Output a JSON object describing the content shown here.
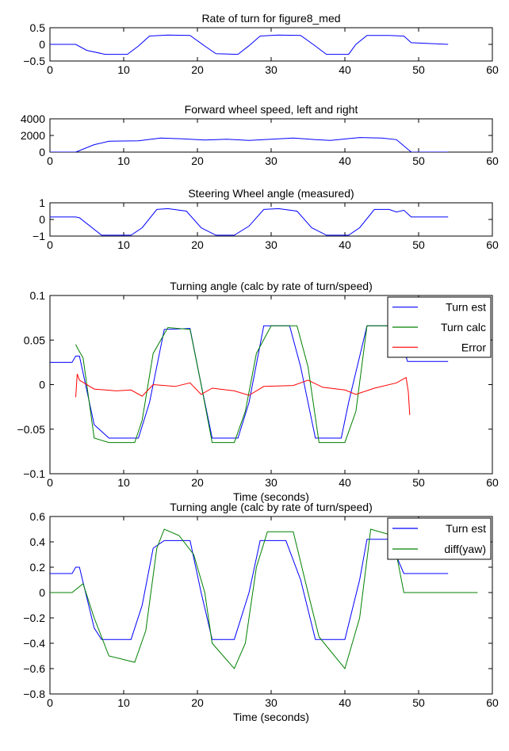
{
  "chart_data": [
    {
      "type": "line",
      "title": "Rate of turn for figure8_med",
      "xlabel": "",
      "ylabel": "",
      "xlim": [
        0,
        60
      ],
      "ylim": [
        -0.5,
        0.5
      ],
      "xticks": [
        "0",
        "10",
        "20",
        "30",
        "40",
        "50",
        "60"
      ],
      "yticks": [
        "0.5",
        "0",
        "−0.5"
      ],
      "grid": false,
      "series": [
        {
          "color": "#0000ff",
          "x": [
            0,
            3.5,
            5,
            7.5,
            10.5,
            12,
            13.5,
            16,
            19,
            21,
            22.5,
            25.5,
            27,
            28.5,
            31,
            34,
            36,
            37.5,
            40.5,
            41.5,
            43,
            46,
            48,
            49,
            54
          ],
          "y": [
            0,
            0,
            -0.18,
            -0.3,
            -0.3,
            -0.05,
            0.25,
            0.28,
            0.27,
            -0.05,
            -0.28,
            -0.3,
            -0.04,
            0.25,
            0.28,
            0.27,
            -0.05,
            -0.3,
            -0.3,
            0.0,
            0.27,
            0.27,
            0.25,
            0.05,
            0
          ]
        }
      ]
    },
    {
      "type": "line",
      "title": "Forward wheel speed, left and right",
      "xlabel": "",
      "ylabel": "",
      "xlim": [
        0,
        60
      ],
      "ylim": [
        0,
        4000
      ],
      "xticks": [
        "0",
        "10",
        "20",
        "30",
        "40",
        "50",
        "60"
      ],
      "yticks": [
        "4000",
        "2000",
        "0"
      ],
      "grid": false,
      "series": [
        {
          "color": "#0000ff",
          "x": [
            0,
            3.5,
            6,
            8,
            12,
            15,
            18,
            21,
            24,
            27,
            30,
            33,
            36,
            38,
            42,
            45,
            47,
            49,
            54
          ],
          "y": [
            0,
            0,
            900,
            1300,
            1350,
            1700,
            1600,
            1450,
            1550,
            1400,
            1550,
            1700,
            1500,
            1400,
            1750,
            1700,
            1500,
            0,
            0
          ]
        }
      ]
    },
    {
      "type": "line",
      "title": "Steering Wheel angle (measured)",
      "xlabel": "",
      "ylabel": "",
      "xlim": [
        0,
        60
      ],
      "ylim": [
        -1,
        1
      ],
      "xticks": [
        "0",
        "10",
        "20",
        "30",
        "40",
        "50",
        "60"
      ],
      "yticks": [
        "1",
        "0",
        "−1"
      ],
      "grid": false,
      "series": [
        {
          "color": "#0000ff",
          "x": [
            0,
            3.5,
            4,
            7,
            11,
            12.5,
            14.5,
            16,
            18.5,
            20.5,
            22.5,
            25,
            27,
            29,
            31,
            33.5,
            35.5,
            37.5,
            40.5,
            42,
            44,
            46,
            47,
            48,
            49,
            54
          ],
          "y": [
            0.15,
            0.15,
            0.1,
            -0.95,
            -0.95,
            -0.5,
            0.6,
            0.65,
            0.5,
            -0.5,
            -0.95,
            -0.95,
            -0.4,
            0.6,
            0.65,
            0.5,
            -0.5,
            -0.95,
            -0.95,
            -0.5,
            0.6,
            0.6,
            0.45,
            0.55,
            0.15,
            0.15
          ]
        }
      ]
    },
    {
      "type": "line",
      "title": "Turning angle (calc by rate of turn/speed)",
      "xlabel": "Time (seconds)",
      "ylabel": "",
      "xlim": [
        0,
        60
      ],
      "ylim": [
        -0.1,
        0.1
      ],
      "xticks": [
        "0",
        "10",
        "20",
        "30",
        "40",
        "50",
        "60"
      ],
      "yticks": [
        "0.1",
        "0.05",
        "0",
        "−0.05",
        "−0.1"
      ],
      "grid": false,
      "legend": "top-right",
      "series": [
        {
          "name": "Turn est",
          "color": "#0000ff",
          "x": [
            0,
            3,
            3.5,
            4,
            6,
            8,
            12,
            13.5,
            15.5,
            19,
            20.5,
            22,
            25.5,
            27,
            29,
            32.5,
            34,
            36,
            39.5,
            40.5,
            43,
            47,
            48.5,
            54
          ],
          "y": [
            0.025,
            0.025,
            0.032,
            0.032,
            -0.045,
            -0.06,
            -0.06,
            -0.02,
            0.062,
            0.063,
            0.0,
            -0.06,
            -0.06,
            -0.02,
            0.066,
            0.066,
            0.02,
            -0.06,
            -0.06,
            -0.02,
            0.066,
            0.066,
            0.026,
            0.026
          ]
        },
        {
          "name": "Turn calc",
          "color": "#008000",
          "x": [
            3.5,
            3.8,
            4.5,
            6,
            8,
            11.5,
            12.5,
            14,
            16,
            19,
            20.5,
            22,
            25,
            26.5,
            28,
            30,
            33.5,
            35,
            36.5,
            40,
            41.5,
            43,
            47,
            48,
            48.5
          ],
          "y": [
            0.045,
            0.04,
            0.03,
            -0.06,
            -0.065,
            -0.065,
            -0.04,
            0.035,
            0.064,
            0.062,
            0.0,
            -0.065,
            -0.065,
            -0.03,
            0.035,
            0.066,
            0.066,
            0.02,
            -0.065,
            -0.065,
            -0.03,
            0.066,
            0.066,
            0.05,
            0.03
          ]
        },
        {
          "name": "Error",
          "color": "#ff0000",
          "x": [
            3.5,
            3.7,
            4,
            6,
            9,
            11,
            12.5,
            14,
            17,
            19,
            20.5,
            22,
            25,
            27,
            29,
            33,
            35,
            37,
            40,
            41.5,
            44,
            47,
            48.3,
            48.6,
            48.8
          ],
          "y": [
            -0.014,
            0.012,
            0.005,
            -0.005,
            -0.007,
            -0.006,
            -0.013,
            0.0,
            -0.002,
            0.002,
            -0.011,
            -0.004,
            -0.007,
            -0.012,
            -0.002,
            -0.001,
            0.005,
            -0.003,
            -0.006,
            -0.011,
            -0.004,
            0.002,
            0.008,
            -0.008,
            -0.034
          ]
        }
      ]
    },
    {
      "type": "line",
      "title": "Turning angle (calc by rate of turn/speed)",
      "xlabel": "Time (seconds)",
      "ylabel": "",
      "xlim": [
        0,
        60
      ],
      "ylim": [
        -0.8,
        0.6
      ],
      "xticks": [
        "0",
        "10",
        "20",
        "30",
        "40",
        "50",
        "60"
      ],
      "yticks": [
        "0.6",
        "0.4",
        "0.2",
        "0",
        "−0.2",
        "−0.4",
        "−0.6",
        "−0.8"
      ],
      "grid": false,
      "legend": "top-right",
      "series": [
        {
          "name": "Turn est",
          "color": "#0000ff",
          "x": [
            0,
            3,
            3.5,
            4,
            6,
            7,
            11,
            12.5,
            14,
            15.5,
            19,
            20.5,
            22,
            25,
            27,
            28.5,
            32,
            34,
            36,
            40,
            42,
            43,
            46,
            48,
            54
          ],
          "y": [
            0.15,
            0.15,
            0.2,
            0.2,
            -0.28,
            -0.37,
            -0.37,
            -0.1,
            0.35,
            0.41,
            0.41,
            0.0,
            -0.37,
            -0.37,
            0.0,
            0.41,
            0.41,
            0.1,
            -0.37,
            -0.37,
            0.1,
            0.42,
            0.42,
            0.15,
            0.15
          ]
        },
        {
          "name": "diff(yaw)",
          "color": "#008000",
          "x": [
            0,
            3,
            4.5,
            6,
            8,
            11.5,
            13,
            14.5,
            15.5,
            17.5,
            19.5,
            21,
            22,
            25,
            26.5,
            28,
            29.5,
            33,
            35,
            36.5,
            40,
            42,
            43.5,
            46.5,
            48,
            49.5,
            52,
            58
          ],
          "y": [
            0,
            0,
            0.07,
            -0.2,
            -0.5,
            -0.55,
            -0.3,
            0.35,
            0.5,
            0.45,
            0.3,
            0.0,
            -0.4,
            -0.6,
            -0.4,
            0.2,
            0.48,
            0.48,
            0.0,
            -0.35,
            -0.6,
            -0.2,
            0.5,
            0.45,
            0.0,
            0.0,
            0.0,
            0.0
          ]
        }
      ]
    }
  ]
}
